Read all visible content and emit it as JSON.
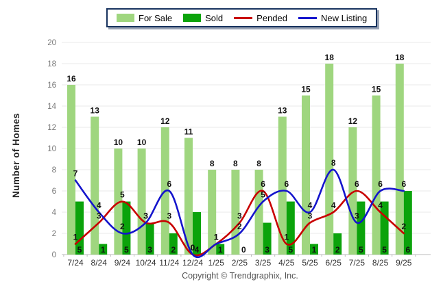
{
  "legend": {
    "items": [
      {
        "label": "For Sale",
        "type": "bar",
        "color": "#9FD67F"
      },
      {
        "label": "Sold",
        "type": "bar",
        "color": "#0BA30B"
      },
      {
        "label": "Pended",
        "type": "line",
        "color": "#C80000"
      },
      {
        "label": "New Listing",
        "type": "line",
        "color": "#1414CC"
      }
    ]
  },
  "y_axis": {
    "title": "Number of Homes",
    "min": 0,
    "max": 20,
    "step": 2
  },
  "footer": {
    "copyright": "Copyright © Trendgraphix, Inc."
  },
  "colors": {
    "for_sale": "#9FD67F",
    "sold": "#0BA30B",
    "pended": "#C80000",
    "new_listing": "#1414CC",
    "grid": "#E8E8E8",
    "axis": "#BBBBBB",
    "tick_text": "#777777",
    "x_text": "#333333",
    "value_text": "#111111"
  },
  "chart_data": {
    "type": "bar",
    "subtype": "grouped bars with overlaid smoothed lines",
    "categories": [
      "7/24",
      "8/24",
      "9/24",
      "10/24",
      "11/24",
      "12/24",
      "1/25",
      "2/25",
      "3/25",
      "4/25",
      "5/25",
      "6/25",
      "7/25",
      "8/25",
      "9/25"
    ],
    "series": [
      {
        "name": "For Sale",
        "type": "bar",
        "color": "#9FD67F",
        "values": [
          16,
          13,
          10,
          10,
          12,
          11,
          8,
          8,
          8,
          13,
          15,
          18,
          12,
          15,
          18
        ]
      },
      {
        "name": "Sold",
        "type": "bar",
        "color": "#0BA30B",
        "values": [
          5,
          1,
          5,
          3,
          2,
          4,
          1,
          0,
          3,
          5,
          1,
          2,
          5,
          5,
          6
        ]
      },
      {
        "name": "Pended",
        "type": "line",
        "color": "#C80000",
        "values": [
          1,
          3,
          5,
          3,
          3,
          0,
          1,
          3,
          6,
          1,
          3,
          4,
          6,
          4,
          2
        ]
      },
      {
        "name": "New Listing",
        "type": "line",
        "color": "#1414CC",
        "values": [
          7,
          4,
          2,
          3,
          6,
          0,
          1,
          2,
          5,
          6,
          4,
          8,
          3,
          6,
          6
        ]
      }
    ],
    "title": "",
    "xlabel": "",
    "ylabel": "Number of Homes",
    "ylim": [
      0,
      20
    ],
    "ytick_step": 2,
    "grid": true,
    "legend_position": "top"
  }
}
